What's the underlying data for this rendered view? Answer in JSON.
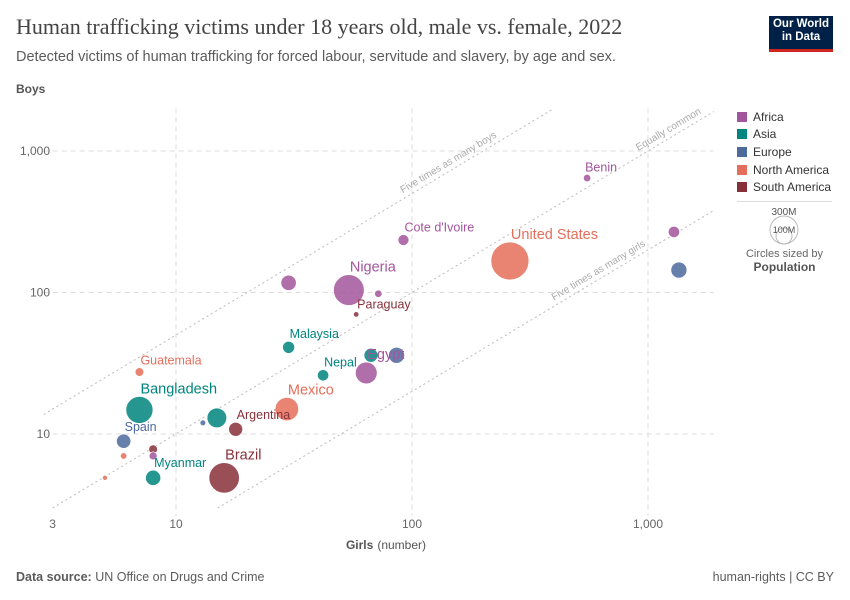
{
  "title": "Human trafficking victims under 18 years old, male vs. female, 2022",
  "subtitle": "Detected victims of human trafficking for forced labour, servitude and slavery, by age and sex.",
  "logo": "Our World in Data",
  "logo_lines": [
    "Our World",
    "in Data"
  ],
  "footer": {
    "source_label": "Data source:",
    "source": "UN Office on Drugs and Crime",
    "license": "human-rights | CC BY"
  },
  "legend": {
    "items": [
      {
        "label": "Africa",
        "color": "#a2559c"
      },
      {
        "label": "Asia",
        "color": "#00847e"
      },
      {
        "label": "Europe",
        "color": "#4c6a9c"
      },
      {
        "label": "North America",
        "color": "#e56e5a"
      },
      {
        "label": "South America",
        "color": "#883039"
      }
    ],
    "size_title": "Circles sized by",
    "size_var": "Population",
    "size_big": "300M",
    "size_small": "100M"
  },
  "chart_data": {
    "type": "scatter",
    "title": "Human trafficking victims under 18 years old, male vs. female, 2022",
    "xlabel": "Girls",
    "xlabel_unit": "(number)",
    "ylabel": "Boys",
    "xscale": "log",
    "yscale": "log",
    "xlim": [
      2.75,
      1900
    ],
    "ylim": [
      3,
      2000
    ],
    "xticks": [
      {
        "v": 3,
        "label": "3"
      },
      {
        "v": 10,
        "label": "10"
      },
      {
        "v": 100,
        "label": "100"
      },
      {
        "v": 1000,
        "label": "1,000"
      }
    ],
    "yticks": [
      {
        "v": 10,
        "label": "10"
      },
      {
        "v": 100,
        "label": "100"
      },
      {
        "v": 1000,
        "label": "1,000"
      }
    ],
    "grid": true,
    "legend": "right",
    "reference_lines": [
      {
        "ratio": 5,
        "label": "Five times as many boys"
      },
      {
        "ratio": 1,
        "label": "Equally common"
      },
      {
        "ratio": 0.2,
        "label": "Five times as many girls"
      }
    ],
    "points": [
      {
        "label": "Benin",
        "region": "Africa",
        "x": 552,
        "y": 644,
        "pop": 13
      },
      {
        "label": "",
        "region": "Africa",
        "x": 1288,
        "y": 268,
        "pop": 30
      },
      {
        "label": "",
        "region": "Europe",
        "x": 1352,
        "y": 144,
        "pop": 60
      },
      {
        "label": "Cote d'Ivoire",
        "region": "Africa",
        "x": 92,
        "y": 235,
        "pop": 28
      },
      {
        "label": "United States",
        "region": "North America",
        "x": 260,
        "y": 167,
        "pop": 335
      },
      {
        "label": "Nigeria",
        "region": "Africa",
        "x": 54,
        "y": 104,
        "pop": 220
      },
      {
        "label": "",
        "region": "Africa",
        "x": 30,
        "y": 117,
        "pop": 55
      },
      {
        "label": "",
        "region": "Africa",
        "x": 72,
        "y": 98,
        "pop": 13
      },
      {
        "label": "Paraguay",
        "region": "South America",
        "x": 58,
        "y": 70,
        "pop": 7
      },
      {
        "label": "Malaysia",
        "region": "Asia",
        "x": 30,
        "y": 41,
        "pop": 34
      },
      {
        "label": "",
        "region": "Asia",
        "x": 67,
        "y": 36,
        "pop": 45
      },
      {
        "label": "",
        "region": "Europe",
        "x": 86,
        "y": 36,
        "pop": 60
      },
      {
        "label": "Egypt",
        "region": "Africa",
        "x": 64,
        "y": 27,
        "pop": 110
      },
      {
        "label": "Nepal",
        "region": "Asia",
        "x": 42,
        "y": 26,
        "pop": 30
      },
      {
        "label": "Mexico",
        "region": "North America",
        "x": 29.5,
        "y": 15,
        "pop": 128
      },
      {
        "label": "Guatemala",
        "region": "North America",
        "x": 7,
        "y": 27.4,
        "pop": 18
      },
      {
        "label": "Bangladesh",
        "region": "Asia",
        "x": 7,
        "y": 14.8,
        "pop": 170
      },
      {
        "label": "",
        "region": "Asia",
        "x": 14.9,
        "y": 13,
        "pop": 90
      },
      {
        "label": "",
        "region": "Europe",
        "x": 13,
        "y": 12,
        "pop": 8
      },
      {
        "label": "Argentina",
        "region": "South America",
        "x": 17.9,
        "y": 10.8,
        "pop": 46
      },
      {
        "label": "Spain",
        "region": "Europe",
        "x": 6,
        "y": 8.9,
        "pop": 48
      },
      {
        "label": "",
        "region": "South America",
        "x": 8,
        "y": 7.8,
        "pop": 18
      },
      {
        "label": "",
        "region": "North America",
        "x": 6,
        "y": 7,
        "pop": 10
      },
      {
        "label": "",
        "region": "Africa",
        "x": 8,
        "y": 7,
        "pop": 15
      },
      {
        "label": "Myanmar",
        "region": "Asia",
        "x": 8,
        "y": 4.9,
        "pop": 54
      },
      {
        "label": "Brazil",
        "region": "South America",
        "x": 16,
        "y": 4.9,
        "pop": 215
      },
      {
        "label": "",
        "region": "North America",
        "x": 5,
        "y": 4.9,
        "pop": 6
      }
    ]
  }
}
